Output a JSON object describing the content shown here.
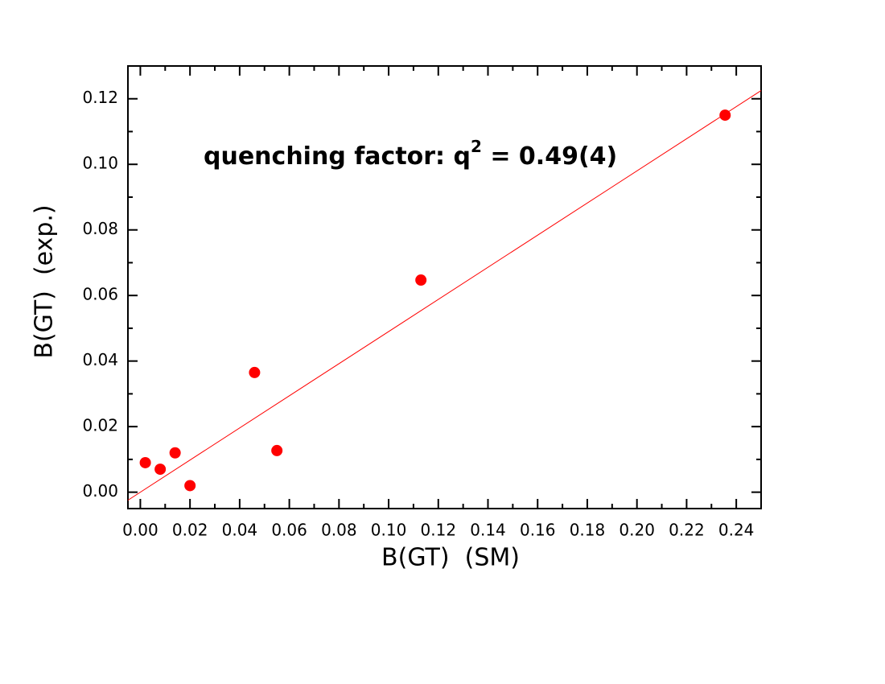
{
  "chart_data": {
    "type": "scatter",
    "xlabel": "B(GT)  (SM)",
    "ylabel": "B(GT)  (exp.)",
    "annotation": {
      "text": "quenching factor: q",
      "superscript": "2",
      "suffix": " = 0.49(4)"
    },
    "series": [
      {
        "color": "#ff0000",
        "x": [
          0.002,
          0.008,
          0.014,
          0.02,
          0.046,
          0.055,
          0.113,
          0.2355
        ],
        "values": [
          0.009,
          0.007,
          0.012,
          0.002,
          0.0365,
          0.0127,
          0.0647,
          0.115
        ]
      }
    ],
    "fit_line": {
      "color": "#ff0000",
      "x": [
        -0.005,
        0.25
      ],
      "values": [
        -0.00245,
        0.1225
      ]
    },
    "xlim": [
      -0.005,
      0.25
    ],
    "ylim": [
      -0.005,
      0.13
    ],
    "xticks": [
      {
        "value": 0,
        "label": "0.00"
      },
      {
        "value": 0.02,
        "label": "0.02"
      },
      {
        "value": 0.04,
        "label": "0.04"
      },
      {
        "value": 0.06,
        "label": "0.06"
      },
      {
        "value": 0.08,
        "label": "0.08"
      },
      {
        "value": 0.1,
        "label": "0.10"
      },
      {
        "value": 0.12,
        "label": "0.12"
      },
      {
        "value": 0.14,
        "label": "0.14"
      },
      {
        "value": 0.16,
        "label": "0.16"
      },
      {
        "value": 0.18,
        "label": "0.18"
      },
      {
        "value": 0.2,
        "label": "0.20"
      },
      {
        "value": 0.22,
        "label": "0.22"
      },
      {
        "value": 0.24,
        "label": "0.24"
      }
    ],
    "yticks": [
      {
        "value": 0,
        "label": "0.00"
      },
      {
        "value": 0.02,
        "label": "0.02"
      },
      {
        "value": 0.04,
        "label": "0.04"
      },
      {
        "value": 0.06,
        "label": "0.06"
      },
      {
        "value": 0.08,
        "label": "0.08"
      },
      {
        "value": 0.1,
        "label": "0.10"
      },
      {
        "value": 0.12,
        "label": "0.12"
      }
    ],
    "xminorticks": [
      0.01,
      0.03,
      0.05,
      0.07,
      0.09,
      0.11,
      0.13,
      0.15,
      0.17,
      0.19,
      0.21,
      0.23
    ],
    "yminorticks": [
      0.01,
      0.03,
      0.05,
      0.07,
      0.09,
      0.11
    ],
    "grid": false
  }
}
